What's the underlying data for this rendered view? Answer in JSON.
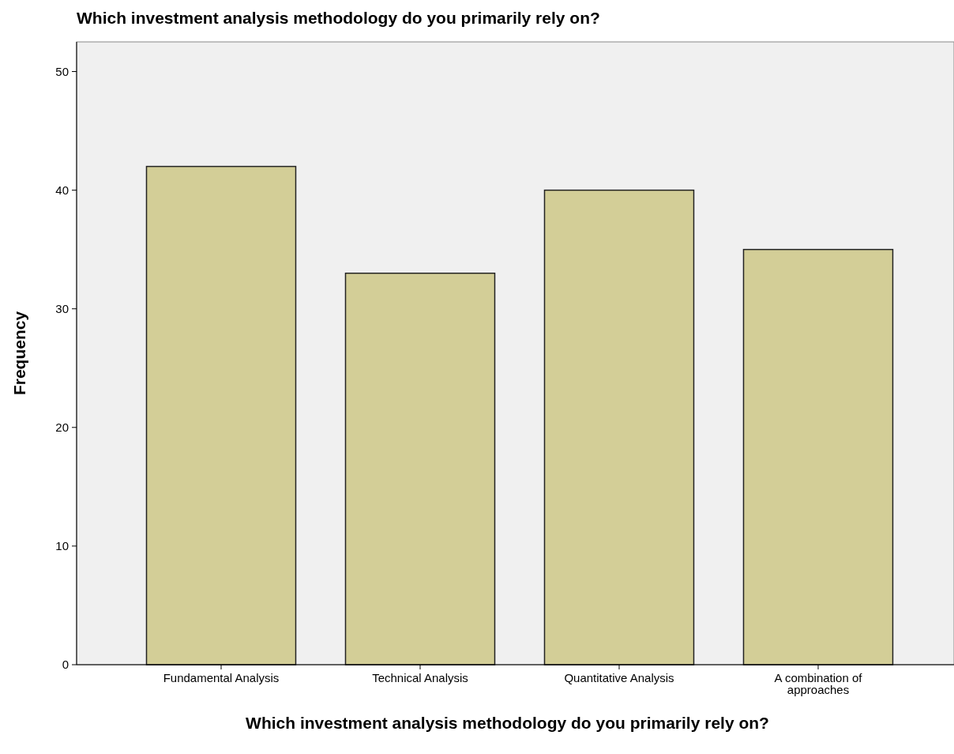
{
  "chart_data": {
    "type": "bar",
    "title": "Which investment analysis methodology do you primarily rely on?",
    "xlabel": "Which investment analysis methodology do you primarily rely on?",
    "ylabel": "Frequency",
    "categories": [
      "Fundamental Analysis",
      "Technical Analysis",
      "Quantitative Analysis",
      "A combination of approaches"
    ],
    "values": [
      42,
      33,
      40,
      35
    ],
    "color": "#d3ce97",
    "ylim": [
      0,
      52.5
    ],
    "yticks": [
      0,
      10,
      20,
      30,
      40,
      50
    ],
    "grid": false
  }
}
